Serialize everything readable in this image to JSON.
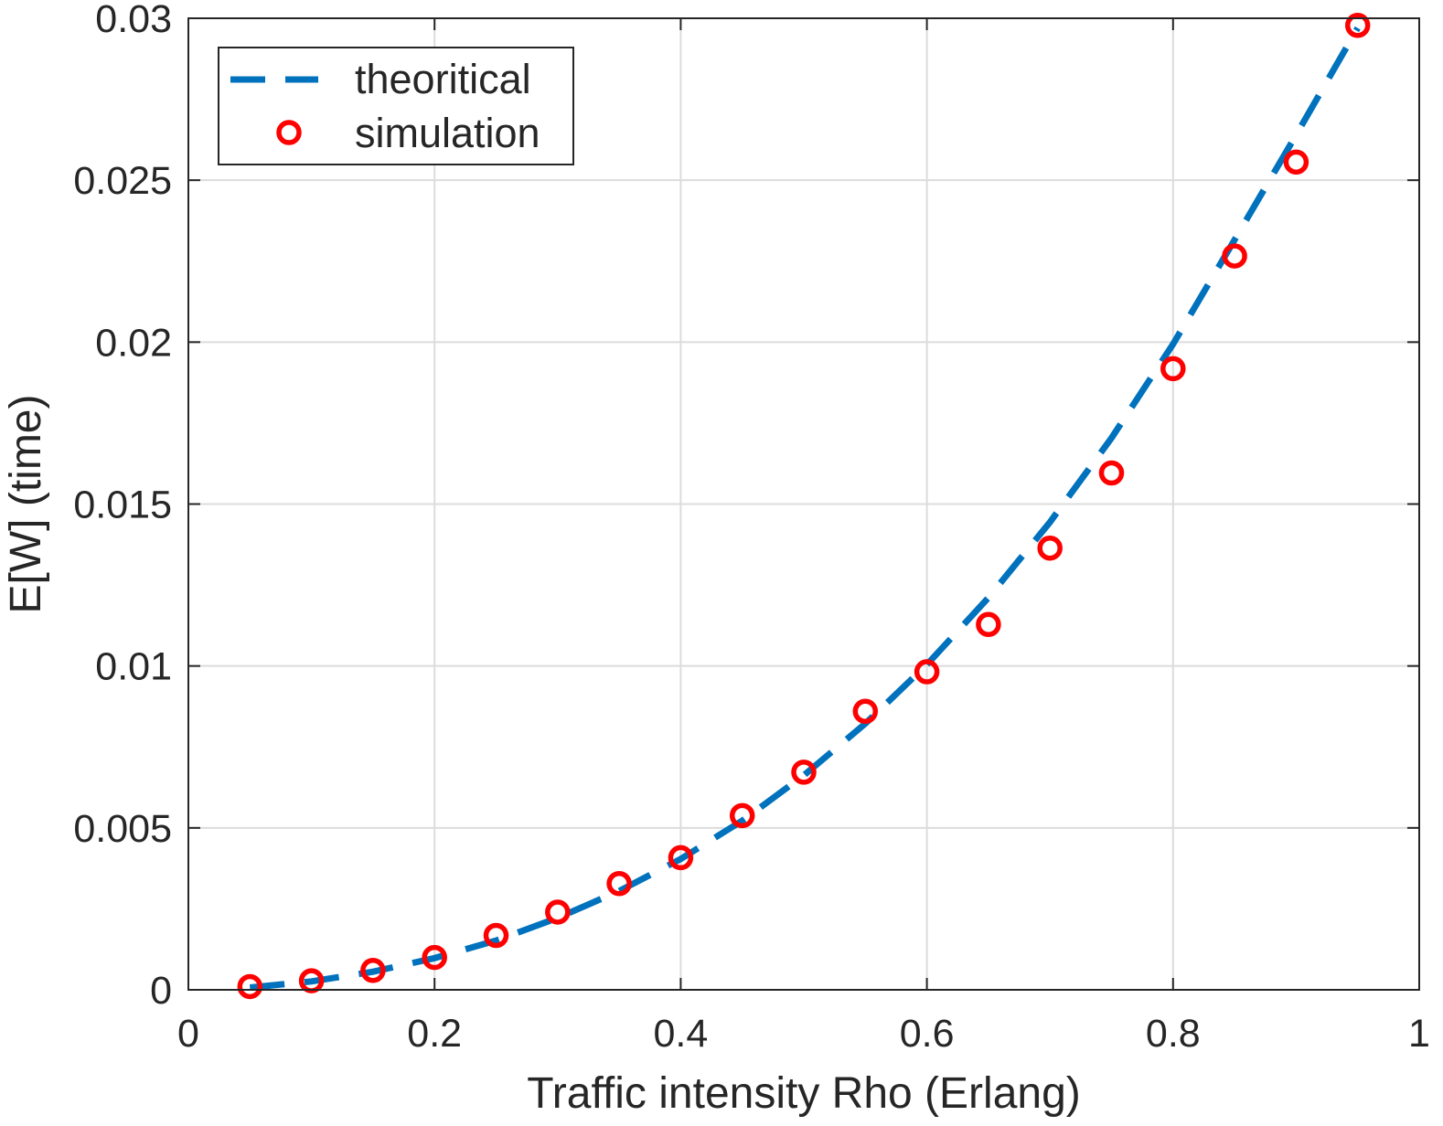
{
  "chart_data": {
    "type": "line",
    "title": "",
    "xlabel": "Traffic intensity Rho (Erlang)",
    "ylabel": "E[W] (time)",
    "xlim": [
      0,
      1
    ],
    "ylim": [
      0,
      0.03
    ],
    "x_ticks": [
      0,
      0.2,
      0.4,
      0.6,
      0.8,
      1
    ],
    "x_tick_labels": [
      "0",
      "0.2",
      "0.4",
      "0.6",
      "0.8",
      "1"
    ],
    "y_ticks": [
      0,
      0.005,
      0.01,
      0.015,
      0.02,
      0.025,
      0.03
    ],
    "y_tick_labels": [
      "0",
      "0.005",
      "0.01",
      "0.015",
      "0.02",
      "0.025",
      "0.03"
    ],
    "grid": true,
    "legend_position": "top-left",
    "series": [
      {
        "name": "theoritical",
        "style": "dashed line",
        "color": "#0072BD",
        "x": [
          0.05,
          0.1,
          0.15,
          0.2,
          0.25,
          0.3,
          0.35,
          0.4,
          0.45,
          0.5,
          0.55,
          0.6,
          0.65,
          0.7,
          0.75,
          0.8,
          0.85,
          0.9,
          0.95
        ],
        "y": [
          7e-05,
          0.00026,
          0.00056,
          0.00098,
          0.00152,
          0.00222,
          0.00305,
          0.00404,
          0.00522,
          0.00662,
          0.00822,
          0.01004,
          0.01211,
          0.01444,
          0.01704,
          0.01994,
          0.02316,
          0.0264,
          0.0297
        ]
      },
      {
        "name": "simulation",
        "style": "circle markers",
        "color": "#FF0000",
        "x": [
          0.05,
          0.1,
          0.15,
          0.2,
          0.25,
          0.3,
          0.35,
          0.4,
          0.45,
          0.5,
          0.55,
          0.6,
          0.65,
          0.7,
          0.75,
          0.8,
          0.85,
          0.9,
          0.95
        ],
        "y": [
          0.0001,
          0.00028,
          0.0006,
          0.001,
          0.00168,
          0.0024,
          0.00328,
          0.00408,
          0.00538,
          0.00672,
          0.0086,
          0.00982,
          0.01128,
          0.01364,
          0.01596,
          0.01918,
          0.02266,
          0.02556,
          0.02978
        ]
      }
    ]
  }
}
